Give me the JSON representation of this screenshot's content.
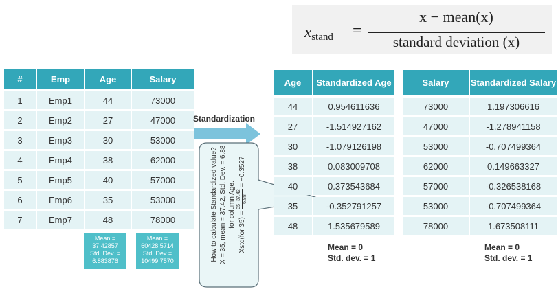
{
  "formula": {
    "lhs_var": "x",
    "lhs_sub": "stand",
    "equals": "=",
    "numerator": "x − mean(x)",
    "denominator": "standard deviation (x)"
  },
  "left_table": {
    "headers": [
      "#",
      "Emp",
      "Age",
      "Salary"
    ],
    "rows": [
      [
        "1",
        "Emp1",
        "44",
        "73000"
      ],
      [
        "2",
        "Emp2",
        "27",
        "47000"
      ],
      [
        "3",
        "Emp3",
        "30",
        "53000"
      ],
      [
        "4",
        "Emp4",
        "38",
        "62000"
      ],
      [
        "5",
        "Emp5",
        "40",
        "57000"
      ],
      [
        "6",
        "Emp6",
        "35",
        "53000"
      ],
      [
        "7",
        "Emp7",
        "48",
        "78000"
      ]
    ]
  },
  "age_stats": {
    "mean_label": "Mean =",
    "mean_value": "37.42857",
    "std_label": "Std. Dev. =",
    "std_value": "6.883876"
  },
  "salary_stats": {
    "mean_label": "Mean =",
    "mean_value": "60428.5714",
    "std_label": "Std. Dev =",
    "std_value": "10499.7570"
  },
  "arrow_label": "Standardization",
  "callout": {
    "line1": "How to calculate Standardized value?",
    "line2": "X = 35, mean = 37.42, Std. Dev. = 6.88",
    "line3": "for column Age.",
    "line4_prefix": "Xstd(for 35) =",
    "frac_top": "35−37.42",
    "frac_bottom": "6.88",
    "line4_suffix": "= −0.3527"
  },
  "right_table": {
    "headers": [
      "Age",
      "Standardized Age",
      "Salary",
      "Standardized Salary"
    ],
    "rows": [
      [
        "44",
        "0.954611636",
        "73000",
        "1.197306616"
      ],
      [
        "27",
        "-1.514927162",
        "47000",
        "-1.278941158"
      ],
      [
        "30",
        "-1.079126198",
        "53000",
        "-0.707499364"
      ],
      [
        "38",
        "0.083009708",
        "62000",
        "0.149663327"
      ],
      [
        "40",
        "0.373543684",
        "57000",
        "-0.326538168"
      ],
      [
        "35",
        "-0.352791257",
        "53000",
        "-0.707499364"
      ],
      [
        "48",
        "1.535679589",
        "78000",
        "1.673508111"
      ]
    ]
  },
  "summary_age": {
    "mean": "Mean = 0",
    "std": "Std. dev. = 1"
  },
  "summary_salary": {
    "mean": "Mean = 0",
    "std": "Std. dev. = 1"
  },
  "colors": {
    "header": "#33a7b9",
    "cell": "#e4f3f5",
    "stat_box": "#4fbfc9",
    "arrow": "#7cc3dc"
  }
}
